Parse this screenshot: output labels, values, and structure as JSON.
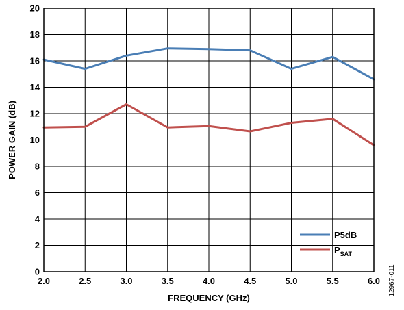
{
  "chart_data": {
    "type": "line",
    "title": "",
    "xlabel": "FREQUENCY (GHz)",
    "ylabel": "POWER GAIN (dB)",
    "xlim": [
      2.0,
      6.0
    ],
    "ylim": [
      0,
      20
    ],
    "x_ticks": [
      2.0,
      2.5,
      3.0,
      3.5,
      4.0,
      4.5,
      5.0,
      5.5,
      6.0
    ],
    "x_tick_labels": [
      "2.0",
      "2.5",
      "3.0",
      "3.5",
      "4.0",
      "4.5",
      "5.0",
      "5.5",
      "6.0"
    ],
    "y_ticks": [
      0,
      2,
      4,
      6,
      8,
      10,
      12,
      14,
      16,
      18,
      20
    ],
    "y_tick_labels": [
      "0",
      "2",
      "4",
      "6",
      "8",
      "10",
      "12",
      "14",
      "16",
      "18",
      "20"
    ],
    "grid": true,
    "legend_position": "bottom-right",
    "x": [
      2.0,
      2.5,
      3.0,
      3.5,
      4.0,
      4.5,
      5.0,
      5.5,
      6.0
    ],
    "series": [
      {
        "name": "P5dB",
        "legend_main": "P5dB",
        "legend_sub": "",
        "color": "#4a7eb5",
        "values": [
          16.1,
          15.4,
          16.4,
          16.95,
          16.9,
          16.8,
          15.4,
          16.3,
          14.6
        ]
      },
      {
        "name": "PSAT",
        "legend_main": "P",
        "legend_sub": "SAT",
        "color": "#c0504d",
        "values": [
          10.95,
          11.0,
          12.7,
          10.95,
          11.05,
          10.65,
          11.3,
          11.6,
          9.6
        ]
      }
    ]
  },
  "figure_id": "12967-011"
}
